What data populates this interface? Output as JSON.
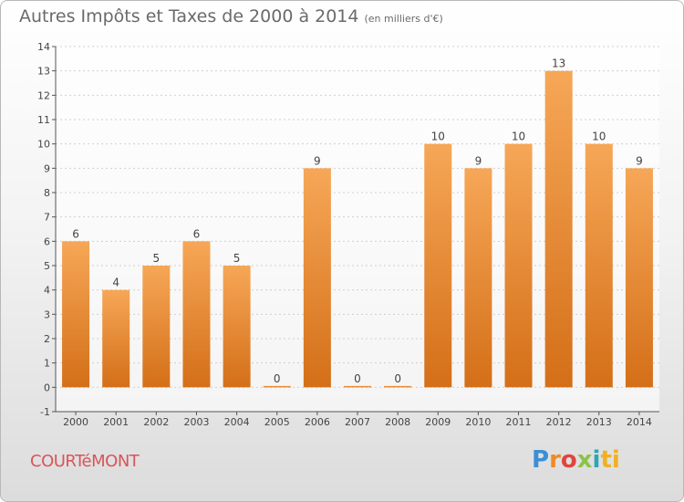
{
  "header": {
    "title": "Autres Impôts et Taxes de 2000 à 2014",
    "unit": "(en milliers d'€)"
  },
  "footer": {
    "town": "COURTéMONT",
    "logo_letters": [
      "P",
      "r",
      "o",
      "x",
      "i",
      "ti"
    ]
  },
  "colors": {
    "bar_top": "#f6a757",
    "bar_bottom": "#d46f18",
    "grid": "#d0d0d0",
    "axis": "#555555",
    "text": "#444444"
  },
  "chart_data": {
    "type": "bar",
    "title": "Autres Impôts et Taxes de 2000 à 2014",
    "subtitle": "(en milliers d'€)",
    "categories": [
      "2000",
      "2001",
      "2002",
      "2003",
      "2004",
      "2005",
      "2006",
      "2007",
      "2008",
      "2009",
      "2010",
      "2011",
      "2012",
      "2013",
      "2014"
    ],
    "values": [
      6,
      4,
      5,
      6,
      5,
      0,
      9,
      0,
      0,
      10,
      9,
      10,
      13,
      10,
      9
    ],
    "labels": [
      "6",
      "4",
      "5",
      "6",
      "5",
      "0",
      "9",
      "0",
      "0",
      "10",
      "9",
      "10",
      "13",
      "10",
      "9"
    ],
    "yticks": [
      "-1",
      "0",
      "1",
      "2",
      "3",
      "4",
      "5",
      "6",
      "7",
      "8",
      "9",
      "10",
      "11",
      "12",
      "13",
      "14"
    ],
    "ylim": [
      -1,
      14
    ],
    "xlabel": "",
    "ylabel": "",
    "grid": true
  }
}
